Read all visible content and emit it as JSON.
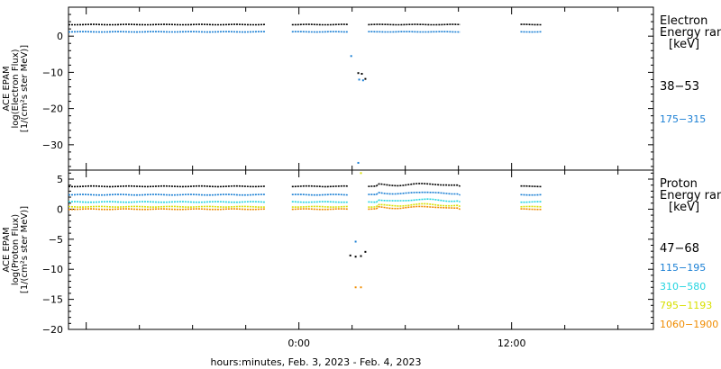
{
  "chart_data": [
    {
      "type": "scatter",
      "panel": "electron",
      "ylabel": [
        "ACE EPAM",
        "log(Electron Flux)",
        "[1/(cm²s ster MeV)]"
      ],
      "ylim": [
        -37,
        8
      ],
      "yticks": [
        0,
        -10,
        -20,
        -30
      ],
      "legend_title": [
        "Electron",
        "Energy ran",
        "[keV]"
      ],
      "series": [
        {
          "name": "38-53",
          "color": "#000000",
          "level": 3.2,
          "dropouts": [
            {
              "t": 3.35,
              "y": -10.2
            },
            {
              "t": 3.55,
              "y": -10.4
            },
            {
              "t": 3.75,
              "y": -11.8
            }
          ]
        },
        {
          "name": "175-315",
          "color": "#1a7fd4",
          "level": 1.2,
          "dropouts": [
            {
              "t": 2.95,
              "y": -5.5
            },
            {
              "t": 3.4,
              "y": -12.0
            },
            {
              "t": 3.62,
              "y": -12.2
            },
            {
              "t": 3.35,
              "y": -35.0
            }
          ]
        }
      ]
    },
    {
      "type": "scatter",
      "panel": "proton",
      "ylabel": [
        "ACE EPAM",
        "log(Proton Flux)",
        "[1/(cm²s ster MeV)]"
      ],
      "ylim": [
        -20,
        6.5
      ],
      "yticks": [
        5,
        0,
        -5,
        -10,
        -15,
        -20
      ],
      "legend_title": [
        "Proton",
        "Energy ran",
        "[keV]"
      ],
      "series": [
        {
          "name": "47-68",
          "color": "#000000",
          "level": 3.8,
          "dropouts": [
            {
              "t": 2.9,
              "y": -7.7
            },
            {
              "t": 3.2,
              "y": -7.9
            },
            {
              "t": 3.5,
              "y": -7.8
            },
            {
              "t": 3.75,
              "y": -7.1
            }
          ]
        },
        {
          "name": "115-195",
          "color": "#1a7fd4",
          "level": 2.4,
          "dropouts": [
            {
              "t": 3.2,
              "y": -5.4
            }
          ]
        },
        {
          "name": "310-580",
          "color": "#22d4e0",
          "level": 1.2,
          "dropouts": []
        },
        {
          "name": "795-1193",
          "color": "#d8e000",
          "level": 0.4,
          "dropouts": [
            {
              "t": 3.5,
              "y": 6.0
            }
          ]
        },
        {
          "name": "1060-1900",
          "color": "#f08c00",
          "level": 0.0,
          "dropouts": [
            {
              "t": 3.2,
              "y": -13.0
            },
            {
              "t": 3.5,
              "y": -13.0
            }
          ]
        }
      ]
    }
  ],
  "x_axis": {
    "range_hours": [
      -13,
      20
    ],
    "tick_labels": [
      {
        "t": 0,
        "label": "0:00"
      },
      {
        "t": 12,
        "label": "12:00"
      }
    ],
    "xlabel": "hours:minutes, Feb.  3, 2023 - Feb.  4, 2023"
  },
  "data_segments_hours": [
    [
      -13,
      -1.9
    ],
    [
      -0.4,
      2.8
    ],
    [
      3.9,
      9.1
    ],
    [
      12.5,
      13.7
    ]
  ]
}
